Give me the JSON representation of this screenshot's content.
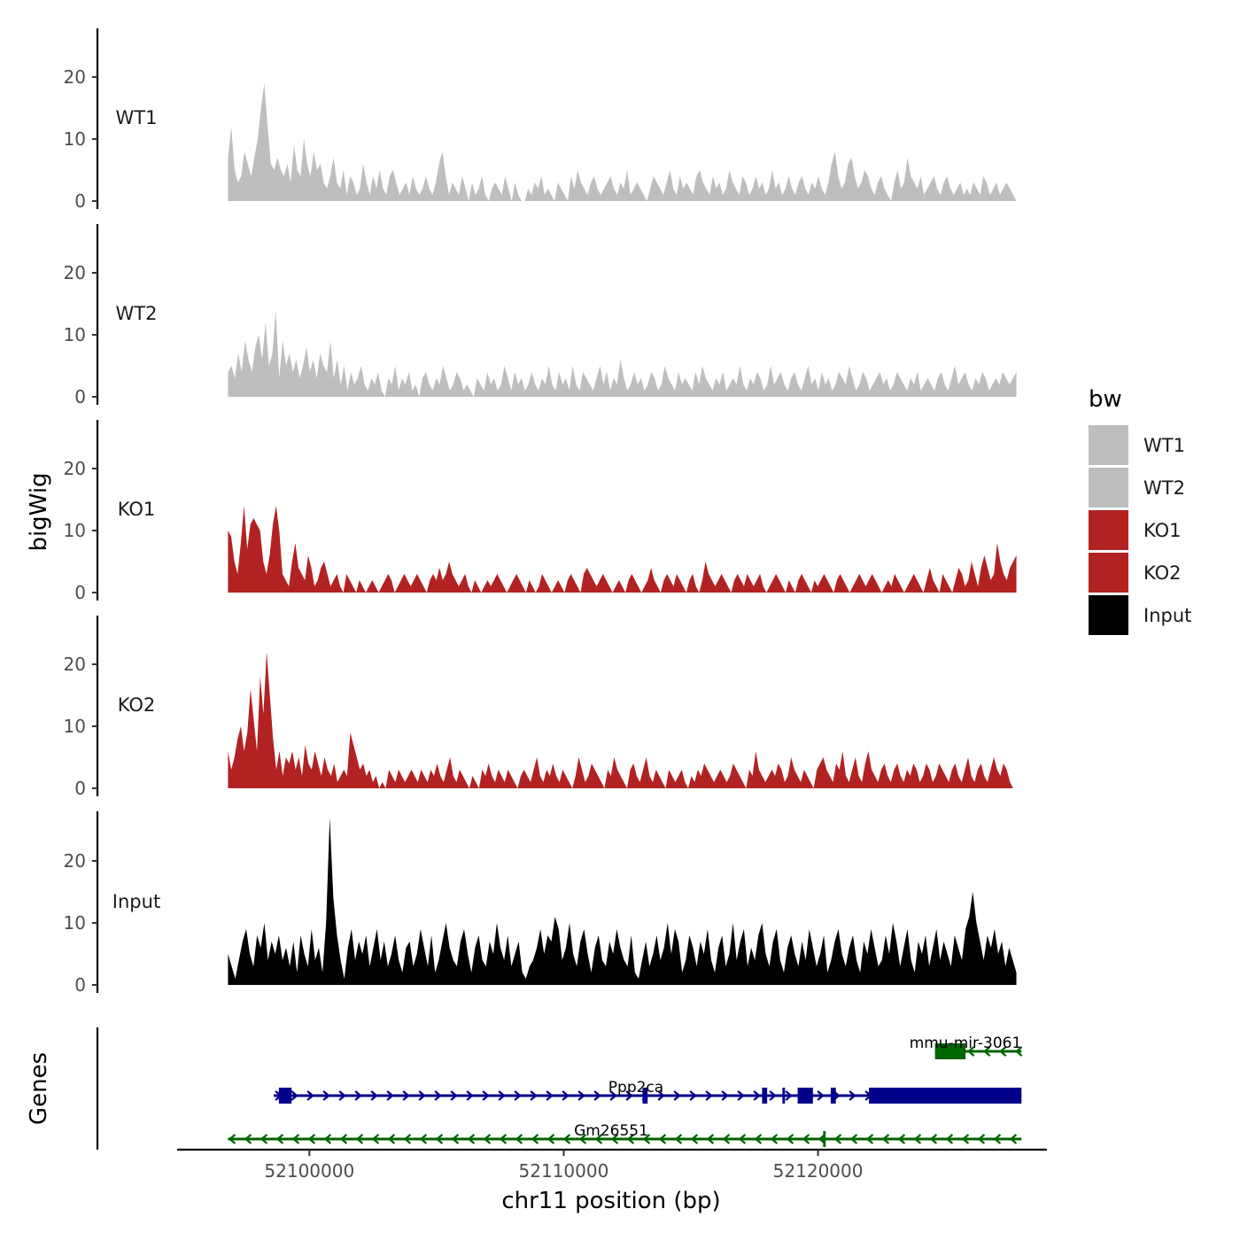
{
  "chart_data": {
    "type": "area",
    "ylabel": "bigWig",
    "xlabel": "chr11 position (bp)",
    "xlim": [
      52094800,
      52129000
    ],
    "ylim": [
      0,
      28
    ],
    "y_ticks": [
      0,
      10,
      20
    ],
    "x_ticks": [
      52100000,
      52110000,
      52120000
    ],
    "x_tick_labels": [
      "52100000",
      "52110000",
      "52120000"
    ],
    "legend": {
      "title": "bw",
      "position": "right",
      "entries": [
        {
          "label": "WT1",
          "color": "#bebebe"
        },
        {
          "label": "WT2",
          "color": "#bebebe"
        },
        {
          "label": "KO1",
          "color": "#b22222"
        },
        {
          "label": "KO2",
          "color": "#b22222"
        },
        {
          "label": "Input",
          "color": "#000000"
        }
      ]
    },
    "tracks": [
      {
        "name": "WT1",
        "color": "#bebebe",
        "x_start": 52096800,
        "x_end": 52127800,
        "values": [
          7,
          12,
          5,
          3,
          4,
          8,
          6,
          4,
          7,
          10,
          15,
          19,
          12,
          6,
          5,
          7,
          5,
          4,
          6,
          3,
          9,
          5,
          4,
          10,
          6,
          4,
          8,
          5,
          6,
          3,
          2,
          4,
          7,
          3,
          2,
          5,
          1,
          4,
          3,
          1,
          2,
          6,
          3,
          1,
          4,
          2,
          5,
          2,
          1,
          4,
          5,
          3,
          1,
          2,
          3,
          1,
          4,
          2,
          1,
          2,
          4,
          2,
          1,
          3,
          6,
          8,
          4,
          1,
          3,
          2,
          1,
          4,
          2,
          0,
          3,
          1,
          2,
          4,
          1,
          0,
          2,
          3,
          2,
          1,
          4,
          2,
          0,
          3,
          1,
          0,
          0,
          2,
          1,
          3,
          2,
          4,
          1,
          2,
          1,
          0,
          3,
          2,
          1,
          0,
          4,
          2,
          5,
          3,
          2,
          1,
          3,
          4,
          2,
          1,
          2,
          3,
          4,
          2,
          1,
          3,
          2,
          5,
          1,
          2,
          3,
          2,
          1,
          0,
          2,
          4,
          3,
          2,
          1,
          3,
          5,
          2,
          1,
          4,
          2,
          3,
          2,
          1,
          4,
          5,
          3,
          2,
          1,
          4,
          2,
          3,
          1,
          2,
          5,
          3,
          2,
          1,
          4,
          3,
          1,
          2,
          4,
          2,
          3,
          1,
          2,
          5,
          2,
          3,
          1,
          2,
          4,
          2,
          1,
          3,
          4,
          2,
          1,
          3,
          2,
          4,
          2,
          1,
          3,
          6,
          8,
          4,
          2,
          3,
          6,
          7,
          4,
          2,
          3,
          5,
          4,
          2,
          1,
          3,
          4,
          2,
          1,
          0,
          3,
          5,
          2,
          3,
          7,
          4,
          3,
          2,
          4,
          1,
          2,
          3,
          4,
          2,
          1,
          3,
          4,
          2,
          1,
          2,
          3,
          1,
          2,
          1,
          3,
          2,
          1,
          4,
          3,
          1,
          2,
          3,
          1,
          2,
          3,
          2,
          1,
          0
        ],
        "gaps": [
          0.24,
          0.39,
          0.44
        ]
      },
      {
        "name": "WT2",
        "color": "#bebebe",
        "x_start": 52096800,
        "x_end": 52127800,
        "values": [
          4,
          5,
          3,
          7,
          4,
          9,
          6,
          4,
          8,
          10,
          6,
          12,
          5,
          7,
          14,
          3,
          9,
          5,
          7,
          4,
          6,
          3,
          5,
          8,
          4,
          6,
          3,
          7,
          5,
          4,
          9,
          3,
          6,
          2,
          5,
          1,
          4,
          2,
          3,
          5,
          2,
          1,
          3,
          2,
          4,
          1,
          0,
          3,
          2,
          5,
          1,
          3,
          2,
          4,
          1,
          2,
          0,
          3,
          4,
          2,
          1,
          3,
          2,
          5,
          3,
          1,
          2,
          4,
          3,
          1,
          2,
          1,
          0,
          3,
          2,
          1,
          4,
          2,
          3,
          1,
          2,
          5,
          3,
          1,
          4,
          2,
          3,
          1,
          2,
          4,
          2,
          1,
          3,
          2,
          5,
          2,
          1,
          4,
          2,
          3,
          1,
          5,
          2,
          1,
          4,
          3,
          2,
          1,
          3,
          5,
          2,
          4,
          1,
          3,
          2,
          6,
          3,
          1,
          2,
          4,
          2,
          3,
          1,
          2,
          4,
          3,
          1,
          2,
          5,
          3,
          2,
          1,
          4,
          2,
          3,
          2,
          1,
          4,
          2,
          5,
          3,
          2,
          1,
          3,
          2,
          4,
          1,
          2,
          3,
          2,
          5,
          2,
          1,
          3,
          2,
          4,
          3,
          1,
          2,
          5,
          2,
          3,
          4,
          2,
          1,
          3,
          4,
          2,
          1,
          3,
          5,
          2,
          3,
          1,
          4,
          2,
          3,
          1,
          2,
          4,
          3,
          2,
          5,
          3,
          1,
          2,
          4,
          3,
          1,
          2,
          3,
          4,
          2,
          3,
          1,
          2,
          4,
          3,
          2,
          1,
          3,
          2,
          4,
          1,
          2,
          3,
          2,
          1,
          3,
          4,
          2,
          1,
          3,
          5,
          2,
          3,
          4,
          2,
          1,
          3,
          2,
          4,
          3,
          1,
          2,
          3,
          2,
          4,
          3,
          2,
          3,
          4
        ],
        "gaps": [
          0.24,
          0.46
        ]
      },
      {
        "name": "KO1",
        "color": "#b22222",
        "x_start": 52096800,
        "x_end": 52127800,
        "values": [
          10,
          9,
          5,
          3,
          8,
          14,
          7,
          11,
          12,
          11,
          10,
          5,
          3,
          6,
          11,
          14,
          10,
          3,
          2,
          1,
          5,
          8,
          4,
          3,
          2,
          6,
          4,
          1,
          2,
          4,
          5,
          3,
          1,
          2,
          3,
          1,
          0,
          3,
          2,
          1,
          0,
          2,
          1,
          0,
          1,
          2,
          1,
          0,
          1,
          2,
          3,
          2,
          0,
          1,
          2,
          3,
          2,
          1,
          2,
          3,
          2,
          1,
          0,
          2,
          3,
          2,
          4,
          2,
          3,
          5,
          3,
          2,
          1,
          2,
          3,
          1,
          0,
          2,
          1,
          0,
          1,
          2,
          1,
          2,
          3,
          2,
          1,
          0,
          1,
          2,
          3,
          2,
          1,
          0,
          2,
          1,
          0,
          1,
          3,
          2,
          1,
          0,
          1,
          2,
          1,
          0,
          2,
          3,
          2,
          1,
          0,
          3,
          4,
          3,
          2,
          1,
          2,
          3,
          2,
          1,
          0,
          1,
          2,
          1,
          0,
          2,
          3,
          2,
          1,
          0,
          1,
          2,
          4,
          2,
          1,
          0,
          2,
          3,
          2,
          1,
          3,
          2,
          1,
          0,
          2,
          3,
          1,
          0,
          2,
          5,
          3,
          2,
          1,
          2,
          3,
          2,
          1,
          0,
          2,
          3,
          2,
          1,
          3,
          2,
          1,
          2,
          3,
          1,
          0,
          1,
          2,
          3,
          2,
          1,
          0,
          2,
          1,
          0,
          2,
          3,
          2,
          1,
          0,
          2,
          1,
          2,
          3,
          2,
          1,
          0,
          2,
          3,
          2,
          1,
          0,
          1,
          2,
          3,
          2,
          1,
          2,
          3,
          2,
          1,
          0,
          1,
          2,
          1,
          3,
          2,
          1,
          0,
          1,
          2,
          3,
          2,
          1,
          0,
          2,
          4,
          2,
          1,
          0,
          3,
          2,
          1,
          0,
          2,
          4,
          3,
          1,
          2,
          5,
          3,
          1,
          4,
          6,
          4,
          2,
          3,
          8,
          5,
          3,
          2,
          4,
          5,
          6
        ],
        "gaps": [
          0.17,
          0.19,
          0.23,
          0.25,
          0.27,
          0.5,
          0.63,
          0.71
        ]
      },
      {
        "name": "KO2",
        "color": "#b22222",
        "x_start": 52096800,
        "x_end": 52127800,
        "values": [
          6,
          3,
          5,
          8,
          10,
          6,
          9,
          16,
          11,
          6,
          18,
          12,
          22,
          15,
          8,
          3,
          6,
          2,
          5,
          4,
          6,
          3,
          5,
          2,
          7,
          4,
          3,
          6,
          4,
          2,
          5,
          3,
          2,
          4,
          1,
          2,
          3,
          2,
          9,
          7,
          5,
          3,
          4,
          2,
          3,
          1,
          2,
          0,
          1,
          0,
          3,
          2,
          1,
          3,
          2,
          1,
          2,
          3,
          2,
          1,
          3,
          2,
          1,
          3,
          2,
          4,
          2,
          1,
          3,
          5,
          2,
          1,
          3,
          2,
          1,
          0,
          2,
          1,
          0,
          3,
          2,
          4,
          2,
          1,
          3,
          2,
          1,
          3,
          2,
          1,
          0,
          2,
          3,
          2,
          1,
          3,
          5,
          2,
          1,
          3,
          2,
          4,
          2,
          1,
          3,
          2,
          1,
          0,
          2,
          5,
          3,
          1,
          2,
          4,
          3,
          2,
          1,
          0,
          3,
          2,
          5,
          3,
          2,
          1,
          0,
          3,
          4,
          2,
          1,
          3,
          5,
          2,
          1,
          3,
          2,
          1,
          0,
          3,
          2,
          1,
          2,
          3,
          1,
          0,
          2,
          1,
          3,
          2,
          4,
          3,
          2,
          1,
          2,
          3,
          2,
          1,
          2,
          4,
          3,
          2,
          1,
          0,
          3,
          2,
          6,
          3,
          2,
          1,
          2,
          3,
          2,
          4,
          3,
          1,
          2,
          5,
          3,
          2,
          1,
          3,
          2,
          1,
          0,
          3,
          4,
          5,
          3,
          2,
          1,
          4,
          3,
          6,
          2,
          1,
          3,
          5,
          2,
          1,
          4,
          6,
          3,
          2,
          1,
          3,
          4,
          2,
          1,
          3,
          4,
          2,
          1,
          3,
          2,
          4,
          3,
          1,
          2,
          4,
          3,
          1,
          2,
          4,
          3,
          2,
          1,
          3,
          4,
          2,
          1,
          3,
          5,
          2,
          1,
          3,
          4,
          2,
          1,
          3,
          5,
          3,
          2,
          4,
          3,
          1,
          0,
          0
        ],
        "gaps": [
          0.34,
          0.44
        ]
      },
      {
        "name": "Input",
        "color": "#000000",
        "x_start": 52096800,
        "x_end": 52127800,
        "values": [
          5,
          3,
          1,
          4,
          7,
          9,
          5,
          3,
          8,
          6,
          10,
          4,
          7,
          5,
          8,
          4,
          6,
          3,
          7,
          2,
          8,
          5,
          3,
          9,
          4,
          6,
          2,
          10,
          27,
          14,
          8,
          4,
          1,
          6,
          9,
          4,
          7,
          5,
          8,
          3,
          6,
          9,
          4,
          7,
          3,
          5,
          8,
          4,
          2,
          6,
          7,
          3,
          5,
          9,
          6,
          3,
          8,
          2,
          4,
          7,
          10,
          6,
          4,
          3,
          7,
          9,
          5,
          2,
          6,
          8,
          4,
          3,
          7,
          5,
          10,
          6,
          4,
          8,
          3,
          5,
          7,
          2,
          1,
          3,
          4,
          6,
          9,
          5,
          8,
          7,
          11,
          9,
          4,
          6,
          10,
          5,
          3,
          7,
          9,
          5,
          2,
          6,
          8,
          4,
          3,
          7,
          5,
          9,
          6,
          4,
          3,
          8,
          2,
          1,
          4,
          7,
          3,
          5,
          8,
          4,
          6,
          10,
          5,
          9,
          7,
          2,
          4,
          8,
          6,
          3,
          7,
          5,
          9,
          4,
          2,
          6,
          8,
          3,
          5,
          10,
          4,
          7,
          9,
          3,
          6,
          4,
          8,
          10,
          5,
          3,
          7,
          9,
          4,
          2,
          6,
          8,
          5,
          3,
          7,
          4,
          9,
          6,
          3,
          5,
          8,
          2,
          4,
          7,
          9,
          5,
          3,
          6,
          8,
          4,
          2,
          7,
          5,
          9,
          6,
          3,
          4,
          8,
          5,
          10,
          7,
          3,
          6,
          9,
          4,
          2,
          7,
          5,
          8,
          3,
          6,
          9,
          4,
          7,
          5,
          3,
          8,
          6,
          4,
          9,
          11,
          15,
          10,
          7,
          4,
          8,
          6,
          9,
          5,
          7,
          3,
          6,
          4,
          2
        ]
      }
    ],
    "genes": [
      {
        "name": "mmu-mir-3061",
        "strand": "-",
        "color": "#006400",
        "start": 52124600,
        "end": 52128000,
        "blocks": [
          {
            "start": 52124600,
            "end": 52125800
          }
        ]
      },
      {
        "name": "Ppp2ca",
        "strand": "+",
        "color": "#00008b",
        "start": 52098600,
        "end": 52128000,
        "blocks": [
          {
            "start": 52098800,
            "end": 52099300
          },
          {
            "start": 52113100,
            "end": 52113300
          },
          {
            "start": 52117800,
            "end": 52118000
          },
          {
            "start": 52118600,
            "end": 52118700
          },
          {
            "start": 52119200,
            "end": 52119800
          },
          {
            "start": 52120500,
            "end": 52120700
          },
          {
            "start": 52122000,
            "end": 52128000
          }
        ]
      },
      {
        "name": "Gm26551",
        "strand": "-",
        "color": "#006400",
        "start": 52096800,
        "end": 52128000,
        "blocks": [
          {
            "start": 52120200,
            "end": 52120300
          }
        ]
      }
    ],
    "genes_panel_label": "Genes"
  }
}
